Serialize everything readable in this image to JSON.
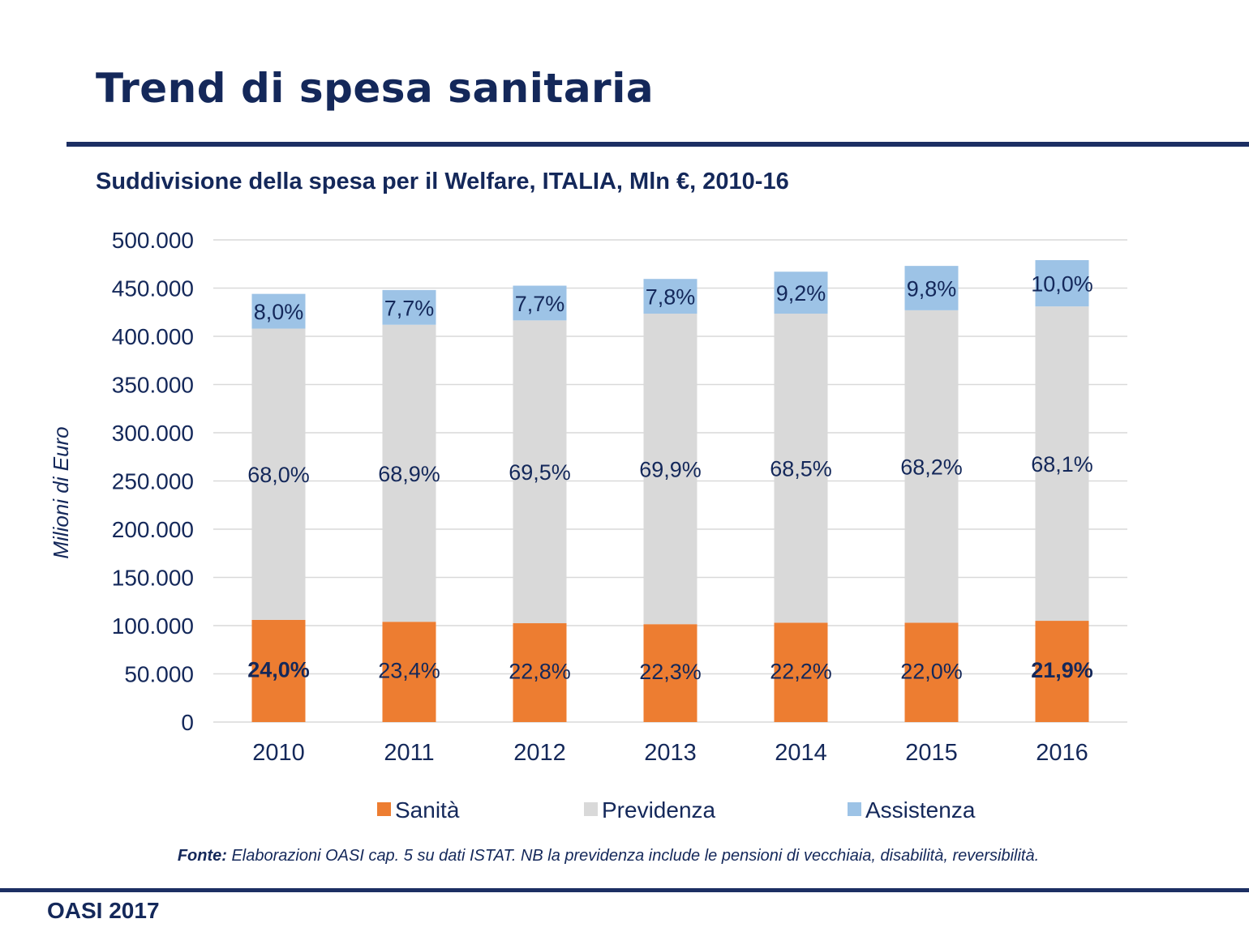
{
  "page": {
    "title": "Trend di spesa sanitaria",
    "source_label": "Fonte:",
    "source_text": " Elaborazioni OASI cap. 5 su dati ISTAT. NB la previdenza include le pensioni di vecchiaia, disabilità, reversibilità.",
    "footer": "OASI 2017"
  },
  "colors": {
    "title": "#14285a",
    "rule": "#1c2f63",
    "grid": "#d9d9d9",
    "text": "#14285a"
  },
  "chart_data": {
    "type": "bar",
    "stacked": true,
    "title": "Suddivisione della spesa per il Welfare, ITALIA, Mln €, 2010-16",
    "xlabel": "",
    "ylabel": "Milioni di Euro",
    "ylim": [
      0,
      500000
    ],
    "yticks": [
      0,
      50000,
      100000,
      150000,
      200000,
      250000,
      300000,
      350000,
      400000,
      450000,
      500000
    ],
    "ytick_labels": [
      "0",
      "50.000",
      "100.000",
      "150.000",
      "200.000",
      "250.000",
      "300.000",
      "350.000",
      "400.000",
      "450.000",
      "500.000"
    ],
    "grid": true,
    "legend_position": "bottom",
    "categories": [
      "2010",
      "2011",
      "2012",
      "2013",
      "2014",
      "2015",
      "2016"
    ],
    "series": [
      {
        "name": "Sanità",
        "color": "#ed7d31",
        "values": [
          106000,
          104000,
          102500,
          101500,
          103000,
          103000,
          105000
        ],
        "labels": [
          "24,0%",
          "23,4%",
          "22,8%",
          "22,3%",
          "22,2%",
          "22,0%",
          "21,9%"
        ],
        "bold_labels": [
          true,
          false,
          false,
          false,
          false,
          false,
          true
        ]
      },
      {
        "name": "Previdenza",
        "color": "#d9d9d9",
        "values": [
          302000,
          308000,
          314000,
          322000,
          320500,
          324000,
          326000
        ],
        "labels": [
          "68,0%",
          "68,9%",
          "69,5%",
          "69,9%",
          "68,5%",
          "68,2%",
          "68,1%"
        ]
      },
      {
        "name": "Assistenza",
        "color": "#9dc3e6",
        "values": [
          36000,
          36000,
          36000,
          36000,
          43500,
          46000,
          48000
        ],
        "labels": [
          "8,0%",
          "7,7%",
          "7,7%",
          "7,8%",
          "9,2%",
          "9,8%",
          "10,0%"
        ]
      }
    ]
  }
}
